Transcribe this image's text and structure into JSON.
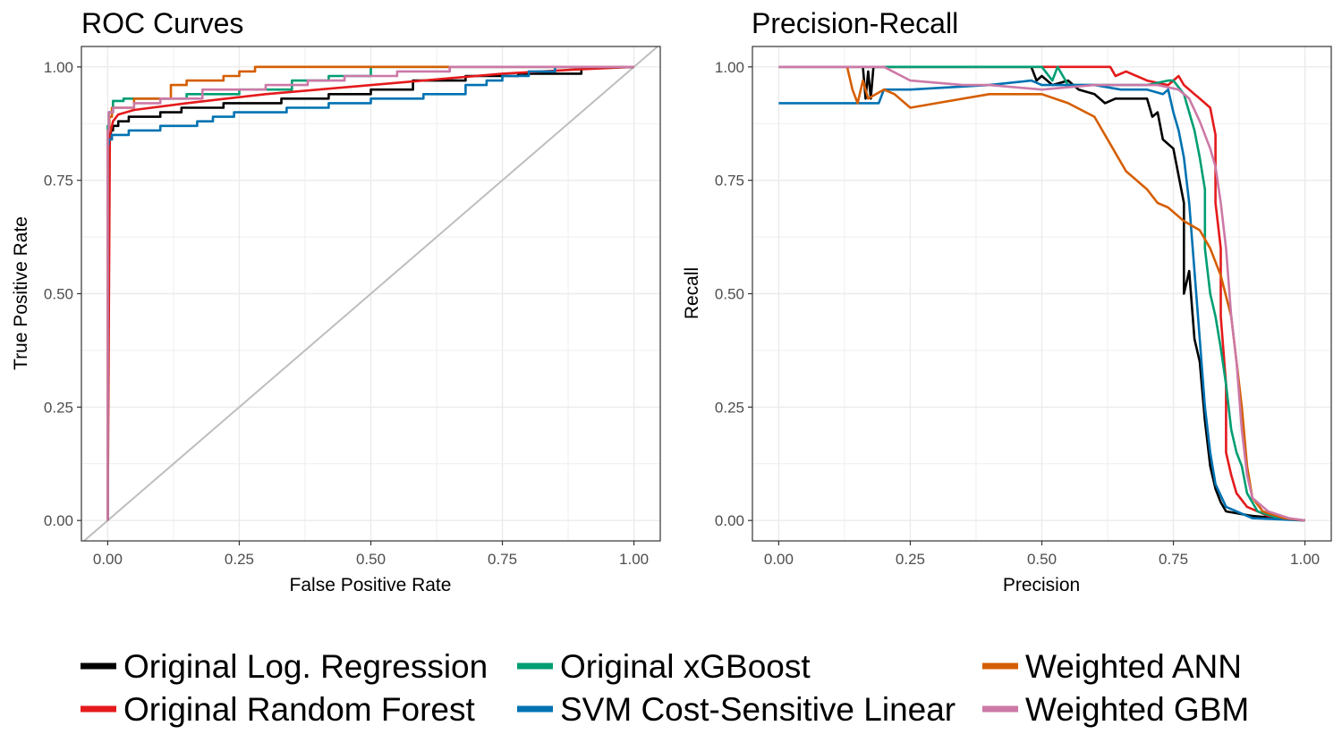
{
  "colors": {
    "Original Log. Regression": "#000000",
    "Original Random Forest": "#E41A1C",
    "Original xGBoost": "#009E73",
    "SVM Cost-Sensitive Linear": "#0072B2",
    "Weighted ANN": "#D55E00",
    "Weighted GBM": "#CC79A7",
    "grid": "#EBEBEB",
    "border": "#333333",
    "diagonal": "#BEBEBE"
  },
  "legend": {
    "entries": [
      "Original Log. Regression",
      "Original Random Forest",
      "Original xGBoost",
      "SVM Cost-Sensitive Linear",
      "Weighted ANN",
      "Weighted GBM"
    ]
  },
  "chart_data": [
    {
      "type": "line",
      "title": "ROC Curves",
      "xlabel": "False Positive Rate",
      "ylabel": "True Positive Rate",
      "xlim": [
        -0.05,
        1.05
      ],
      "ylim": [
        -0.045,
        1.045
      ],
      "xticks": [
        0,
        0.25,
        0.5,
        0.75,
        1
      ],
      "xtick_labels": [
        "0.00",
        "0.25",
        "0.50",
        "0.75",
        "1.00"
      ],
      "yticks": [
        0,
        0.25,
        0.5,
        0.75,
        1
      ],
      "ytick_labels": [
        "0.00",
        "0.25",
        "0.50",
        "0.75",
        "1.00"
      ],
      "grid": true,
      "diagonal": true,
      "series": [
        {
          "name": "Original Log. Regression",
          "step": true,
          "points": [
            [
              0,
              0
            ],
            [
              0.003,
              0.79
            ],
            [
              0.006,
              0.85
            ],
            [
              0.01,
              0.86
            ],
            [
              0.02,
              0.87
            ],
            [
              0.04,
              0.88
            ],
            [
              0.1,
              0.89
            ],
            [
              0.14,
              0.9
            ],
            [
              0.22,
              0.91
            ],
            [
              0.33,
              0.92
            ],
            [
              0.42,
              0.93
            ],
            [
              0.5,
              0.94
            ],
            [
              0.58,
              0.95
            ],
            [
              0.68,
              0.97
            ],
            [
              0.78,
              0.98
            ],
            [
              0.9,
              0.985
            ],
            [
              1,
              1
            ]
          ]
        },
        {
          "name": "Original Random Forest",
          "step": false,
          "points": [
            [
              0,
              0
            ],
            [
              0.004,
              0.85
            ],
            [
              0.01,
              0.88
            ],
            [
              0.02,
              0.895
            ],
            [
              0.05,
              0.905
            ],
            [
              0.15,
              0.92
            ],
            [
              0.3,
              0.94
            ],
            [
              0.45,
              0.955
            ],
            [
              0.6,
              0.97
            ],
            [
              0.75,
              0.985
            ],
            [
              0.9,
              0.995
            ],
            [
              1,
              1
            ]
          ]
        },
        {
          "name": "Original xGBoost",
          "step": true,
          "points": [
            [
              0,
              0
            ],
            [
              0.002,
              0.87
            ],
            [
              0.01,
              0.9
            ],
            [
              0.03,
              0.925
            ],
            [
              0.15,
              0.93
            ],
            [
              0.25,
              0.94
            ],
            [
              0.35,
              0.95
            ],
            [
              0.42,
              0.97
            ],
            [
              0.5,
              0.98
            ],
            [
              0.51,
              1
            ],
            [
              1,
              1
            ]
          ]
        },
        {
          "name": "SVM Cost-Sensitive Linear",
          "step": true,
          "points": [
            [
              0,
              0
            ],
            [
              0.002,
              0.83
            ],
            [
              0.008,
              0.84
            ],
            [
              0.04,
              0.85
            ],
            [
              0.1,
              0.86
            ],
            [
              0.17,
              0.87
            ],
            [
              0.2,
              0.88
            ],
            [
              0.24,
              0.89
            ],
            [
              0.34,
              0.9
            ],
            [
              0.42,
              0.91
            ],
            [
              0.5,
              0.92
            ],
            [
              0.6,
              0.93
            ],
            [
              0.68,
              0.94
            ],
            [
              0.72,
              0.96
            ],
            [
              0.75,
              0.97
            ],
            [
              0.8,
              0.98
            ],
            [
              0.85,
              0.99
            ],
            [
              1,
              1
            ]
          ]
        },
        {
          "name": "Weighted ANN",
          "step": true,
          "points": [
            [
              0,
              0
            ],
            [
              0.003,
              0.86
            ],
            [
              0.008,
              0.89
            ],
            [
              0.05,
              0.91
            ],
            [
              0.12,
              0.93
            ],
            [
              0.15,
              0.96
            ],
            [
              0.22,
              0.97
            ],
            [
              0.25,
              0.98
            ],
            [
              0.28,
              0.99
            ],
            [
              0.3,
              1
            ],
            [
              1,
              1
            ]
          ]
        },
        {
          "name": "Weighted GBM",
          "step": true,
          "points": [
            [
              0,
              0
            ],
            [
              0.002,
              0.86
            ],
            [
              0.01,
              0.9
            ],
            [
              0.05,
              0.91
            ],
            [
              0.1,
              0.92
            ],
            [
              0.18,
              0.93
            ],
            [
              0.3,
              0.95
            ],
            [
              0.38,
              0.96
            ],
            [
              0.45,
              0.97
            ],
            [
              0.55,
              0.98
            ],
            [
              0.65,
              0.99
            ],
            [
              0.75,
              1
            ],
            [
              1,
              1
            ]
          ]
        }
      ]
    },
    {
      "type": "line",
      "title": "Precision-Recall",
      "xlabel": "Precision",
      "ylabel": "Recall",
      "xlim": [
        -0.05,
        1.05
      ],
      "ylim": [
        -0.045,
        1.045
      ],
      "xticks": [
        0,
        0.25,
        0.5,
        0.75,
        1
      ],
      "xtick_labels": [
        "0.00",
        "0.25",
        "0.50",
        "0.75",
        "1.00"
      ],
      "yticks": [
        0,
        0.25,
        0.5,
        0.75,
        1
      ],
      "ytick_labels": [
        "0.00",
        "0.25",
        "0.50",
        "0.75",
        "1.00"
      ],
      "grid": true,
      "diagonal": false,
      "series": [
        {
          "name": "Original Log. Regression",
          "step": false,
          "points": [
            [
              0.16,
              1
            ],
            [
              0.165,
              0.93
            ],
            [
              0.17,
              0.99
            ],
            [
              0.175,
              0.93
            ],
            [
              0.18,
              1
            ],
            [
              0.48,
              1
            ],
            [
              0.49,
              0.97
            ],
            [
              0.5,
              0.98
            ],
            [
              0.52,
              0.96
            ],
            [
              0.55,
              0.97
            ],
            [
              0.57,
              0.95
            ],
            [
              0.6,
              0.94
            ],
            [
              0.62,
              0.92
            ],
            [
              0.64,
              0.93
            ],
            [
              0.7,
              0.93
            ],
            [
              0.71,
              0.89
            ],
            [
              0.72,
              0.9
            ],
            [
              0.73,
              0.84
            ],
            [
              0.75,
              0.82
            ],
            [
              0.76,
              0.76
            ],
            [
              0.77,
              0.7
            ],
            [
              0.77,
              0.5
            ],
            [
              0.78,
              0.55
            ],
            [
              0.79,
              0.4
            ],
            [
              0.8,
              0.35
            ],
            [
              0.81,
              0.22
            ],
            [
              0.82,
              0.12
            ],
            [
              0.83,
              0.07
            ],
            [
              0.84,
              0.04
            ],
            [
              0.85,
              0.02
            ],
            [
              0.9,
              0.01
            ],
            [
              1,
              0
            ]
          ]
        },
        {
          "name": "Original Random Forest",
          "step": false,
          "points": [
            [
              0,
              1
            ],
            [
              0.42,
              1
            ],
            [
              0.63,
              1
            ],
            [
              0.64,
              0.98
            ],
            [
              0.66,
              0.99
            ],
            [
              0.7,
              0.97
            ],
            [
              0.74,
              0.96
            ],
            [
              0.76,
              0.98
            ],
            [
              0.77,
              0.96
            ],
            [
              0.78,
              0.95
            ],
            [
              0.79,
              0.94
            ],
            [
              0.8,
              0.93
            ],
            [
              0.82,
              0.91
            ],
            [
              0.83,
              0.85
            ],
            [
              0.83,
              0.7
            ],
            [
              0.84,
              0.6
            ],
            [
              0.84,
              0.45
            ],
            [
              0.85,
              0.3
            ],
            [
              0.85,
              0.15
            ],
            [
              0.86,
              0.1
            ],
            [
              0.87,
              0.06
            ],
            [
              0.89,
              0.03
            ],
            [
              0.93,
              0.01
            ],
            [
              1,
              0
            ]
          ]
        },
        {
          "name": "Original xGBoost",
          "step": false,
          "points": [
            [
              0,
              1
            ],
            [
              0.5,
              1
            ],
            [
              0.52,
              0.97
            ],
            [
              0.53,
              1
            ],
            [
              0.55,
              0.96
            ],
            [
              0.6,
              0.96
            ],
            [
              0.7,
              0.96
            ],
            [
              0.74,
              0.97
            ],
            [
              0.75,
              0.97
            ],
            [
              0.77,
              0.94
            ],
            [
              0.78,
              0.9
            ],
            [
              0.79,
              0.86
            ],
            [
              0.8,
              0.8
            ],
            [
              0.81,
              0.73
            ],
            [
              0.81,
              0.6
            ],
            [
              0.82,
              0.5
            ],
            [
              0.83,
              0.45
            ],
            [
              0.84,
              0.38
            ],
            [
              0.85,
              0.3
            ],
            [
              0.86,
              0.2
            ],
            [
              0.87,
              0.15
            ],
            [
              0.88,
              0.12
            ],
            [
              0.89,
              0.06
            ],
            [
              0.91,
              0.02
            ],
            [
              0.95,
              0.005
            ],
            [
              1,
              0
            ]
          ]
        },
        {
          "name": "SVM Cost-Sensitive Linear",
          "step": false,
          "points": [
            [
              0,
              0.92
            ],
            [
              0.19,
              0.92
            ],
            [
              0.2,
              0.95
            ],
            [
              0.25,
              0.95
            ],
            [
              0.4,
              0.96
            ],
            [
              0.48,
              0.97
            ],
            [
              0.5,
              0.96
            ],
            [
              0.6,
              0.96
            ],
            [
              0.65,
              0.95
            ],
            [
              0.7,
              0.95
            ],
            [
              0.73,
              0.94
            ],
            [
              0.74,
              0.95
            ],
            [
              0.75,
              0.9
            ],
            [
              0.76,
              0.86
            ],
            [
              0.77,
              0.8
            ],
            [
              0.78,
              0.7
            ],
            [
              0.79,
              0.55
            ],
            [
              0.8,
              0.4
            ],
            [
              0.81,
              0.25
            ],
            [
              0.82,
              0.15
            ],
            [
              0.83,
              0.08
            ],
            [
              0.85,
              0.03
            ],
            [
              0.9,
              0.005
            ],
            [
              1,
              0
            ]
          ]
        },
        {
          "name": "Weighted ANN",
          "step": false,
          "points": [
            [
              0.13,
              1
            ],
            [
              0.14,
              0.95
            ],
            [
              0.15,
              0.92
            ],
            [
              0.16,
              0.97
            ],
            [
              0.17,
              0.93
            ],
            [
              0.2,
              0.95
            ],
            [
              0.22,
              0.94
            ],
            [
              0.25,
              0.91
            ],
            [
              0.3,
              0.92
            ],
            [
              0.4,
              0.94
            ],
            [
              0.5,
              0.94
            ],
            [
              0.55,
              0.92
            ],
            [
              0.6,
              0.89
            ],
            [
              0.63,
              0.83
            ],
            [
              0.66,
              0.77
            ],
            [
              0.7,
              0.73
            ],
            [
              0.72,
              0.7
            ],
            [
              0.74,
              0.69
            ],
            [
              0.77,
              0.66
            ],
            [
              0.8,
              0.64
            ],
            [
              0.82,
              0.6
            ],
            [
              0.84,
              0.54
            ],
            [
              0.86,
              0.45
            ],
            [
              0.87,
              0.35
            ],
            [
              0.88,
              0.25
            ],
            [
              0.89,
              0.12
            ],
            [
              0.9,
              0.05
            ],
            [
              0.92,
              0.02
            ],
            [
              0.96,
              0.005
            ],
            [
              1,
              0
            ]
          ]
        },
        {
          "name": "Weighted GBM",
          "step": false,
          "points": [
            [
              0,
              1
            ],
            [
              0.2,
              1
            ],
            [
              0.25,
              0.97
            ],
            [
              0.35,
              0.96
            ],
            [
              0.4,
              0.96
            ],
            [
              0.5,
              0.95
            ],
            [
              0.6,
              0.96
            ],
            [
              0.68,
              0.96
            ],
            [
              0.72,
              0.96
            ],
            [
              0.76,
              0.95
            ],
            [
              0.78,
              0.93
            ],
            [
              0.8,
              0.88
            ],
            [
              0.82,
              0.82
            ],
            [
              0.83,
              0.78
            ],
            [
              0.84,
              0.7
            ],
            [
              0.85,
              0.6
            ],
            [
              0.86,
              0.45
            ],
            [
              0.87,
              0.35
            ],
            [
              0.88,
              0.2
            ],
            [
              0.89,
              0.1
            ],
            [
              0.9,
              0.05
            ],
            [
              0.93,
              0.02
            ],
            [
              0.97,
              0.005
            ],
            [
              1,
              0
            ]
          ]
        }
      ]
    }
  ]
}
